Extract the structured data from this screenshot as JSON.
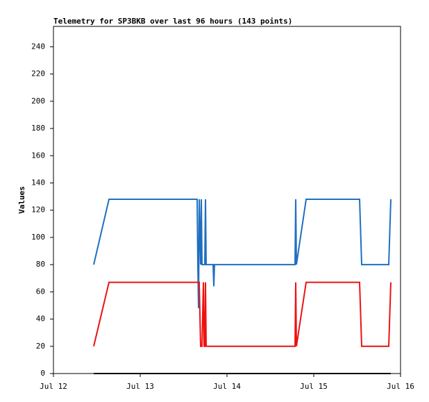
{
  "chart_data": {
    "type": "line",
    "title": "Telemetry for SP3BKB over last 96 hours (143 points)",
    "y_label": "Values",
    "x": [
      0.464,
      0.64,
      1.656,
      1.664,
      1.672,
      1.68,
      1.696,
      1.704,
      1.712,
      1.728,
      1.736,
      1.744,
      1.752,
      1.76,
      1.84,
      1.848,
      1.856,
      2.784,
      2.792,
      2.8,
      2.912,
      3.528,
      3.552,
      3.864,
      3.888
    ],
    "series": [
      {
        "color": "#1f6fc0",
        "values": [
          80,
          128,
          128,
          80,
          48,
          128,
          80,
          128,
          80,
          80,
          80,
          80,
          128,
          80,
          80,
          64,
          80,
          80,
          128,
          80,
          128,
          128,
          80,
          80,
          128
        ]
      },
      {
        "color": "#ee1111",
        "values": [
          20,
          67,
          67,
          67,
          67,
          67,
          20,
          20,
          20,
          67,
          20,
          20,
          67,
          20,
          20,
          20,
          20,
          20,
          67,
          20,
          67,
          67,
          20,
          20,
          67
        ]
      },
      {
        "color": "#000000",
        "values": [
          0,
          0,
          0,
          0,
          0,
          0,
          0,
          0,
          0,
          0,
          0,
          0,
          0,
          0,
          0,
          0,
          0,
          0,
          0,
          0,
          0,
          0,
          0,
          0,
          0
        ]
      }
    ],
    "xlim": [
      0,
      4
    ],
    "xticks": [
      {
        "value": 0,
        "label": "Jul 12"
      },
      {
        "value": 1,
        "label": "Jul 13"
      },
      {
        "value": 2,
        "label": "Jul 14"
      },
      {
        "value": 3,
        "label": "Jul 15"
      },
      {
        "value": 4,
        "label": "Jul 16"
      }
    ],
    "ylim": [
      0,
      255
    ],
    "yticks": [
      0,
      20,
      40,
      60,
      80,
      100,
      120,
      140,
      160,
      180,
      200,
      220,
      240
    ]
  }
}
